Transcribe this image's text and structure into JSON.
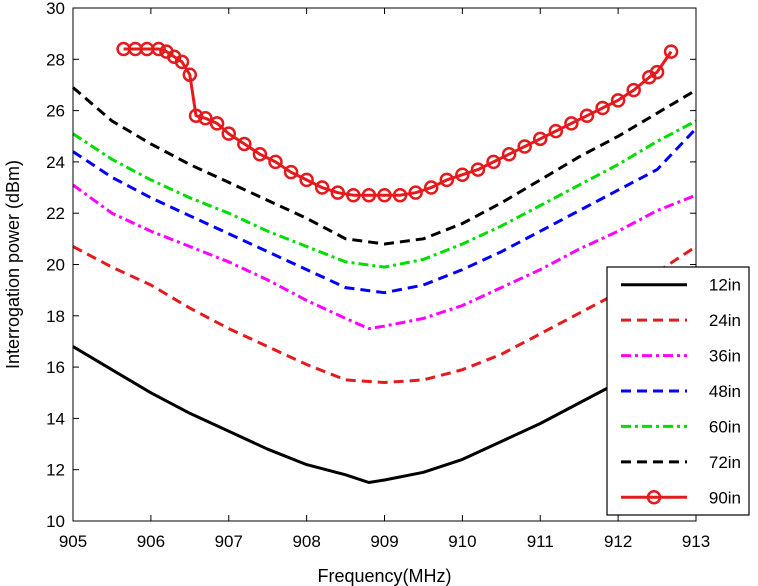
{
  "chart_data": {
    "type": "line",
    "title": "",
    "xlabel": "Frequency(MHz)",
    "ylabel": "Interrogation power (dBm)",
    "xlim": [
      905,
      913
    ],
    "ylim": [
      10,
      30
    ],
    "xticks": [
      "905",
      "906",
      "907",
      "908",
      "909",
      "910",
      "911",
      "912",
      "913"
    ],
    "yticks": [
      "10",
      "12",
      "14",
      "16",
      "18",
      "20",
      "22",
      "24",
      "26",
      "28",
      "30"
    ],
    "grid": false,
    "legend_position": "bottom-right",
    "series": [
      {
        "name": "12in",
        "color": "#000000",
        "dash": "solid",
        "marker": "none",
        "x": [
          905,
          905.5,
          906,
          906.5,
          907,
          907.5,
          908,
          908.5,
          908.8,
          909,
          909.5,
          910,
          910.5,
          911,
          911.5,
          912,
          912.5,
          913
        ],
        "y": [
          16.8,
          15.9,
          15.0,
          14.2,
          13.5,
          12.8,
          12.2,
          11.8,
          11.5,
          11.6,
          11.9,
          12.4,
          13.1,
          13.8,
          14.6,
          15.4,
          16.2,
          17.0
        ]
      },
      {
        "name": "24in",
        "color": "#e41a1c",
        "dash": "dashed",
        "marker": "none",
        "x": [
          905,
          905.5,
          906,
          906.5,
          907,
          907.5,
          908,
          908.5,
          909,
          909.5,
          910,
          910.5,
          911,
          911.5,
          912,
          912.5,
          913
        ],
        "y": [
          20.7,
          19.9,
          19.2,
          18.3,
          17.5,
          16.8,
          16.1,
          15.5,
          15.4,
          15.5,
          15.9,
          16.5,
          17.3,
          18.1,
          18.9,
          19.7,
          20.7
        ]
      },
      {
        "name": "36in",
        "color": "#ff00ff",
        "dash": "dashdot",
        "marker": "none",
        "x": [
          905,
          905.5,
          906,
          906.5,
          907,
          907.5,
          908,
          908.5,
          908.8,
          909,
          909.5,
          910,
          910.5,
          911,
          911.5,
          912,
          912.5,
          913
        ],
        "y": [
          23.1,
          22.0,
          21.3,
          20.7,
          20.1,
          19.4,
          18.6,
          17.9,
          17.5,
          17.6,
          17.9,
          18.4,
          19.1,
          19.8,
          20.6,
          21.3,
          22.1,
          22.7
        ]
      },
      {
        "name": "48in",
        "color": "#0000ff",
        "dash": "dashed",
        "marker": "none",
        "x": [
          905,
          905.5,
          906,
          906.5,
          907,
          907.5,
          908,
          908.5,
          909,
          909.5,
          910,
          910.5,
          911,
          911.5,
          912,
          912.5,
          913
        ],
        "y": [
          24.4,
          23.4,
          22.6,
          21.9,
          21.2,
          20.5,
          19.8,
          19.1,
          18.9,
          19.2,
          19.8,
          20.5,
          21.3,
          22.1,
          22.9,
          23.7,
          25.3
        ]
      },
      {
        "name": "60in",
        "color": "#00dd00",
        "dash": "dashdot",
        "marker": "none",
        "x": [
          905,
          905.5,
          906,
          906.5,
          907,
          907.5,
          908,
          908.5,
          909,
          909.5,
          910,
          910.5,
          911,
          911.5,
          912,
          912.5,
          913
        ],
        "y": [
          25.1,
          24.1,
          23.3,
          22.6,
          22.0,
          21.3,
          20.7,
          20.1,
          19.9,
          20.2,
          20.8,
          21.5,
          22.3,
          23.1,
          23.9,
          24.8,
          25.6
        ]
      },
      {
        "name": "72in",
        "color": "#000000",
        "dash": "dashed",
        "marker": "none",
        "x": [
          905,
          905.5,
          906,
          906.5,
          907,
          907.5,
          908,
          908.5,
          909,
          909.5,
          910,
          910.5,
          911,
          911.5,
          912,
          912.5,
          913
        ],
        "y": [
          26.9,
          25.6,
          24.7,
          23.9,
          23.2,
          22.5,
          21.8,
          21.0,
          20.8,
          21.0,
          21.6,
          22.4,
          23.3,
          24.2,
          25.0,
          25.9,
          26.8
        ]
      },
      {
        "name": "90in",
        "color": "#e41a1c",
        "dash": "solid",
        "marker": "circle",
        "x": [
          905.65,
          905.8,
          905.95,
          906.1,
          906.2,
          906.3,
          906.4,
          906.5,
          906.58,
          906.7,
          906.85,
          907,
          907.2,
          907.4,
          907.6,
          907.8,
          908,
          908.2,
          908.4,
          908.6,
          908.8,
          909,
          909.2,
          909.4,
          909.6,
          909.8,
          910,
          910.2,
          910.4,
          910.6,
          910.8,
          911,
          911.2,
          911.4,
          911.6,
          911.8,
          912,
          912.2,
          912.4,
          912.5,
          912.68
        ],
        "y": [
          28.4,
          28.4,
          28.4,
          28.4,
          28.3,
          28.1,
          27.9,
          27.4,
          25.8,
          25.7,
          25.5,
          25.1,
          24.7,
          24.3,
          24.0,
          23.6,
          23.3,
          23.0,
          22.8,
          22.7,
          22.7,
          22.7,
          22.7,
          22.8,
          23.0,
          23.3,
          23.5,
          23.7,
          24.0,
          24.3,
          24.6,
          24.9,
          25.2,
          25.5,
          25.8,
          26.1,
          26.4,
          26.8,
          27.3,
          27.5,
          28.3
        ]
      }
    ]
  }
}
